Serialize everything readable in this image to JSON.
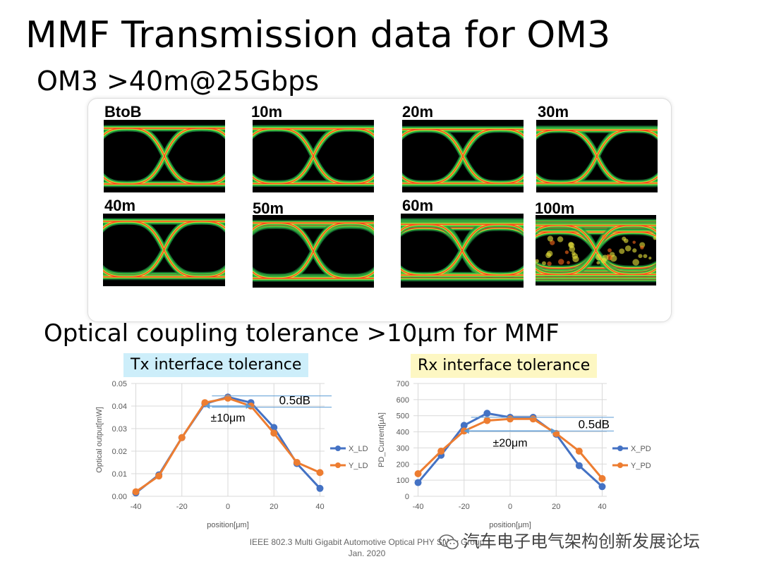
{
  "title": "MMF Transmission data for OM3",
  "subtitle": "OM3 >40m@25Gbps",
  "eye_diagrams": [
    {
      "label": "BtoB",
      "quality": 1.0
    },
    {
      "label": "10m",
      "quality": 0.95
    },
    {
      "label": "20m",
      "quality": 0.9
    },
    {
      "label": "30m",
      "quality": 0.85
    },
    {
      "label": "40m",
      "quality": 0.8
    },
    {
      "label": "50m",
      "quality": 0.72
    },
    {
      "label": "60m",
      "quality": 0.55
    },
    {
      "label": "100m",
      "quality": 0.3
    }
  ],
  "section_title": "Optical coupling tolerance >10μm for MMF",
  "tx_label": "Tx interface tolerance",
  "rx_label": "Rx interface tolerance",
  "colors": {
    "tx_tag_bg": "#cdeefa",
    "rx_tag_bg": "#fdf7c3",
    "series_x": "#4472c4",
    "series_y": "#ed7d31",
    "arrow": "#5b9bd5"
  },
  "chart_data": [
    {
      "type": "line",
      "title": "",
      "xlabel": "position[μm]",
      "ylabel": "Optical output[mW]",
      "x": [
        -40,
        -30,
        -20,
        -10,
        0,
        10,
        20,
        30,
        40
      ],
      "xticks": [
        "-40",
        "-20",
        "0",
        "20",
        "40"
      ],
      "yticks": [
        "0.00",
        "0.01",
        "0.02",
        "0.03",
        "0.04",
        "0.05"
      ],
      "ylim": [
        0,
        0.05
      ],
      "xlim": [
        -42,
        42
      ],
      "series": [
        {
          "name": "X_LD",
          "values": [
            0.0015,
            0.0095,
            0.026,
            0.041,
            0.044,
            0.0415,
            0.0305,
            0.0145,
            0.0035
          ]
        },
        {
          "name": "Y_LD",
          "values": [
            0.002,
            0.009,
            0.026,
            0.0415,
            0.0435,
            0.04,
            0.028,
            0.015,
            0.0105
          ]
        }
      ],
      "annotations": {
        "db": "0.5dB",
        "tol": "±10μm",
        "db_level_top": 0.0445,
        "db_level_bottom": 0.0395,
        "tol_from": -10,
        "tol_to": 10,
        "tol_level": 0.04
      }
    },
    {
      "type": "line",
      "title": "",
      "xlabel": "position[μm]",
      "ylabel": "PD_Current[μA]",
      "x": [
        -40,
        -30,
        -20,
        -10,
        0,
        10,
        20,
        30,
        40
      ],
      "xticks": [
        "-40",
        "-20",
        "0",
        "20",
        "40"
      ],
      "yticks": [
        "0",
        "100",
        "200",
        "300",
        "400",
        "500",
        "600",
        "700"
      ],
      "ylim": [
        0,
        700
      ],
      "xlim": [
        -42,
        42
      ],
      "series": [
        {
          "name": "X_PD",
          "values": [
            85,
            255,
            440,
            515,
            490,
            490,
            385,
            190,
            60
          ]
        },
        {
          "name": "Y_PD",
          "values": [
            140,
            280,
            405,
            470,
            480,
            480,
            390,
            280,
            110
          ]
        }
      ],
      "annotations": {
        "db": "0.5dB",
        "tol": "±20μm",
        "db_level_top": 490,
        "db_level_bottom": 405,
        "tol_from": -20,
        "tol_to": 20,
        "tol_level": 405
      }
    }
  ],
  "footer_line1": "IEEE 802.3 Multi Gigabit Automotive Optical PHY Study Group",
  "footer_line2": "Jan. 2020",
  "watermark": "汽车电子电气架构创新发展论坛"
}
